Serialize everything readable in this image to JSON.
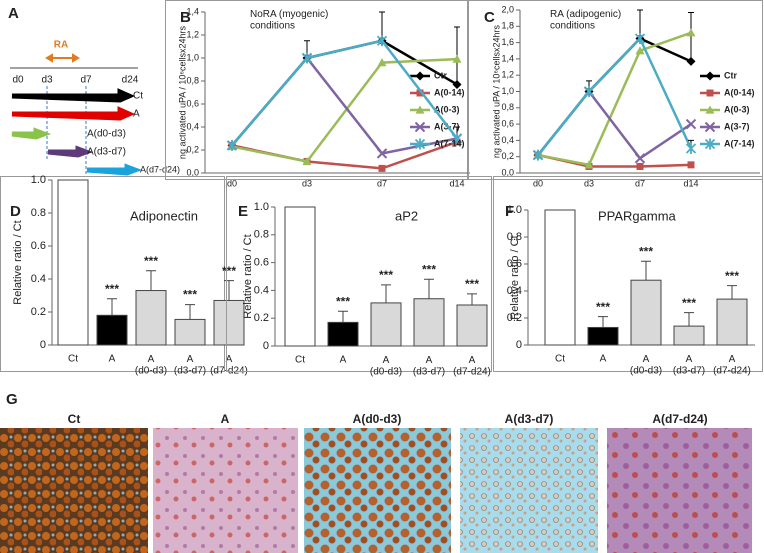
{
  "panel_a": {
    "label": "A",
    "treatment": "RA",
    "days": [
      "d0",
      "d3",
      "d7",
      "d24"
    ],
    "rows": [
      "Ct",
      "A",
      "A(d0-d3)",
      "A(d3-d7)",
      "A(d7-d24)"
    ]
  },
  "chart_data": [
    {
      "label": "B",
      "type": "line",
      "title": "NoRA (myogenic)\nconditions",
      "y_label": "ng activated uPA / 10⁶cellsx24hrs",
      "categories": [
        "d0",
        "d3",
        "d7",
        "d14"
      ],
      "ylim": [
        0,
        1.4
      ],
      "yticks": [
        {
          "value": 0,
          "label": "0,0"
        },
        {
          "value": 0.2,
          "label": "0,2"
        },
        {
          "value": 0.4,
          "label": "0,4"
        },
        {
          "value": 0.6,
          "label": "0,6"
        },
        {
          "value": 0.8,
          "label": "0,8"
        },
        {
          "value": 1.0,
          "label": "1,0"
        },
        {
          "value": 1.2,
          "label": "1,2"
        },
        {
          "value": 1.4,
          "label": "1,4"
        }
      ],
      "series": [
        {
          "name": "Ctr",
          "color": "#000000",
          "marker": "diamond",
          "values": [
            0.24,
            1.0,
            1.15,
            0.77
          ],
          "errors": [
            null,
            null,
            0.25,
            0.5
          ]
        },
        {
          "name": "A(0-14)",
          "color": "#c0504d",
          "marker": "square",
          "values": [
            0.24,
            0.1,
            0.04,
            0.27
          ],
          "errors": [
            null,
            null,
            null,
            null
          ]
        },
        {
          "name": "A(0-3)",
          "color": "#9bbb59",
          "marker": "triangle",
          "values": [
            0.23,
            0.1,
            0.96,
            0.99
          ],
          "errors": [
            null,
            null,
            null,
            null
          ]
        },
        {
          "name": "A(3-7)",
          "color": "#8064a2",
          "marker": "x",
          "values": [
            0.24,
            1.0,
            0.17,
            0.3
          ],
          "errors": [
            null,
            null,
            null,
            0.1
          ]
        },
        {
          "name": "A(7-14)",
          "color": "#4bacc6",
          "marker": "asterisk",
          "values": [
            0.24,
            1.0,
            1.15,
            0.3
          ],
          "errors": [
            null,
            0.15,
            null,
            0.1
          ]
        }
      ]
    },
    {
      "label": "C",
      "type": "line",
      "title": "RA (adipogenic)\nconditions",
      "y_label": "ng activated uPA / 10⁶cellsx24hrs",
      "categories": [
        "d0",
        "d3",
        "d7",
        "d14"
      ],
      "ylim": [
        0,
        2.0
      ],
      "yticks": [
        {
          "value": 0,
          "label": "0,0"
        },
        {
          "value": 0.2,
          "label": "0,2"
        },
        {
          "value": 0.4,
          "label": "0,4"
        },
        {
          "value": 0.6,
          "label": "0,6"
        },
        {
          "value": 0.8,
          "label": "0,8"
        },
        {
          "value": 1.0,
          "label": "1,0"
        },
        {
          "value": 1.2,
          "label": "1,2"
        },
        {
          "value": 1.4,
          "label": "1,4"
        },
        {
          "value": 1.6,
          "label": "1,6"
        },
        {
          "value": 1.8,
          "label": "1,8"
        },
        {
          "value": 2.0,
          "label": "2,0"
        }
      ],
      "series": [
        {
          "name": "Ctr",
          "color": "#000000",
          "marker": "diamond",
          "values": [
            0.22,
            1.0,
            1.65,
            1.37
          ],
          "errors": [
            null,
            null,
            0.35,
            0.6
          ]
        },
        {
          "name": "A(0-14)",
          "color": "#c0504d",
          "marker": "square",
          "values": [
            0.22,
            0.08,
            0.08,
            0.1
          ],
          "errors": [
            null,
            null,
            null,
            null
          ]
        },
        {
          "name": "A(0-3)",
          "color": "#9bbb59",
          "marker": "triangle",
          "values": [
            0.22,
            0.1,
            1.5,
            1.72
          ],
          "errors": [
            null,
            null,
            null,
            null
          ]
        },
        {
          "name": "A(3-7)",
          "color": "#8064a2",
          "marker": "x",
          "values": [
            0.22,
            1.0,
            0.18,
            0.6
          ],
          "errors": [
            null,
            null,
            null,
            null
          ]
        },
        {
          "name": "A(7-14)",
          "color": "#4bacc6",
          "marker": "asterisk",
          "values": [
            0.22,
            1.0,
            1.65,
            0.3
          ],
          "errors": [
            null,
            0.13,
            null,
            0.1
          ]
        }
      ]
    },
    {
      "label": "D",
      "type": "bar",
      "title": "Adiponectin",
      "y_label": "Relative ratio / Ct",
      "categories": [
        "Ct",
        "A",
        "A\n(d0-d3)",
        "A\n(d3-d7)",
        "A\n(d7-d24)"
      ],
      "ylim": [
        0,
        1.0
      ],
      "yticks": [
        0,
        0.2,
        0.4,
        0.6,
        0.8,
        {
          "value": 1.0,
          "label": "1.0"
        }
      ],
      "values": [
        1.0,
        0.18,
        0.33,
        0.155,
        0.27
      ],
      "errors": [
        null,
        0.1,
        0.12,
        0.09,
        0.12
      ],
      "colors": [
        "#ffffff",
        "#000000",
        "#d9d9d9",
        "#d9d9d9",
        "#d9d9d9"
      ],
      "significance": [
        null,
        "***",
        "***",
        "***",
        "***"
      ]
    },
    {
      "label": "E",
      "type": "bar",
      "title": "aP2",
      "y_label": "Relative ratio / Ct",
      "categories": [
        "Ct",
        "A",
        "A\n(d0-d3)",
        "A\n(d3-d7)",
        "A\n(d7-d24)"
      ],
      "ylim": [
        0,
        1.0
      ],
      "yticks": [
        0,
        0.2,
        0.4,
        0.6,
        0.8,
        {
          "value": 1.0,
          "label": "1.0"
        }
      ],
      "values": [
        1.0,
        0.17,
        0.31,
        0.34,
        0.295
      ],
      "errors": [
        null,
        0.08,
        0.13,
        0.14,
        0.08
      ],
      "colors": [
        "#ffffff",
        "#000000",
        "#d9d9d9",
        "#d9d9d9",
        "#d9d9d9"
      ],
      "significance": [
        null,
        "***",
        "***",
        "***",
        "***"
      ]
    },
    {
      "label": "F",
      "type": "bar",
      "title": "PPARgamma",
      "y_label": "Relative ratio / Ct",
      "categories": [
        "Ct",
        "A",
        "A\n(d0-d3)",
        "A\n(d3-d7)",
        "A\n(d7-d24)"
      ],
      "ylim": [
        0,
        1.0
      ],
      "yticks": [
        0,
        0.2,
        0.4,
        0.6,
        0.8,
        {
          "value": 1.0,
          "label": "1.0"
        }
      ],
      "values": [
        1.0,
        0.13,
        0.48,
        0.14,
        0.34
      ],
      "errors": [
        null,
        0.08,
        0.14,
        0.1,
        0.1
      ],
      "colors": [
        "#ffffff",
        "#000000",
        "#d9d9d9",
        "#d9d9d9",
        "#d9d9d9"
      ],
      "significance": [
        null,
        "***",
        "***",
        "***",
        "***"
      ]
    }
  ],
  "panel_g": {
    "label": "G",
    "images": [
      "Ct",
      "A",
      "A(d0-d3)",
      "A(d3-d7)",
      "A(d7-d24)"
    ]
  }
}
